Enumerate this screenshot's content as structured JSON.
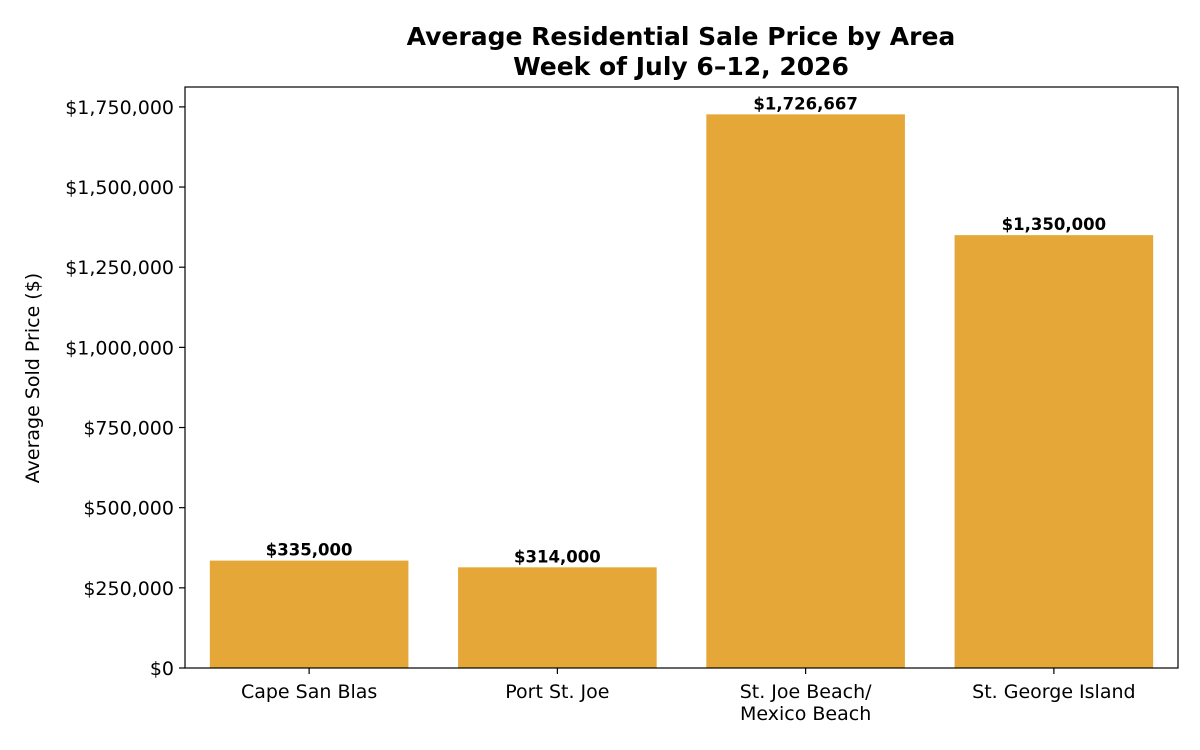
{
  "chart_data": {
    "type": "bar",
    "title": "Average Residential Sale Price by Area",
    "subtitle": "Week of July 6–12, 2026",
    "xlabel": "",
    "ylabel": "Average Sold Price ($)",
    "categories": [
      [
        "Cape San Blas"
      ],
      [
        "Port St. Joe"
      ],
      [
        "St. Joe Beach/",
        "Mexico Beach"
      ],
      [
        "St. George Island"
      ]
    ],
    "values": [
      335000,
      314000,
      1726667,
      1350000
    ],
    "value_labels": [
      "$335,000",
      "$314,000",
      "$1,726,667",
      "$1,350,000"
    ],
    "ylim": [
      0,
      1812000
    ],
    "yticks": [
      0,
      250000,
      500000,
      750000,
      1000000,
      1250000,
      1500000,
      1750000
    ],
    "ytick_labels": [
      "$0",
      "$250,000",
      "$500,000",
      "$750,000",
      "$1,000,000",
      "$1,250,000",
      "$1,500,000",
      "$1,750,000"
    ],
    "bar_color": "#E5A838",
    "grid": false,
    "legend": "none"
  }
}
